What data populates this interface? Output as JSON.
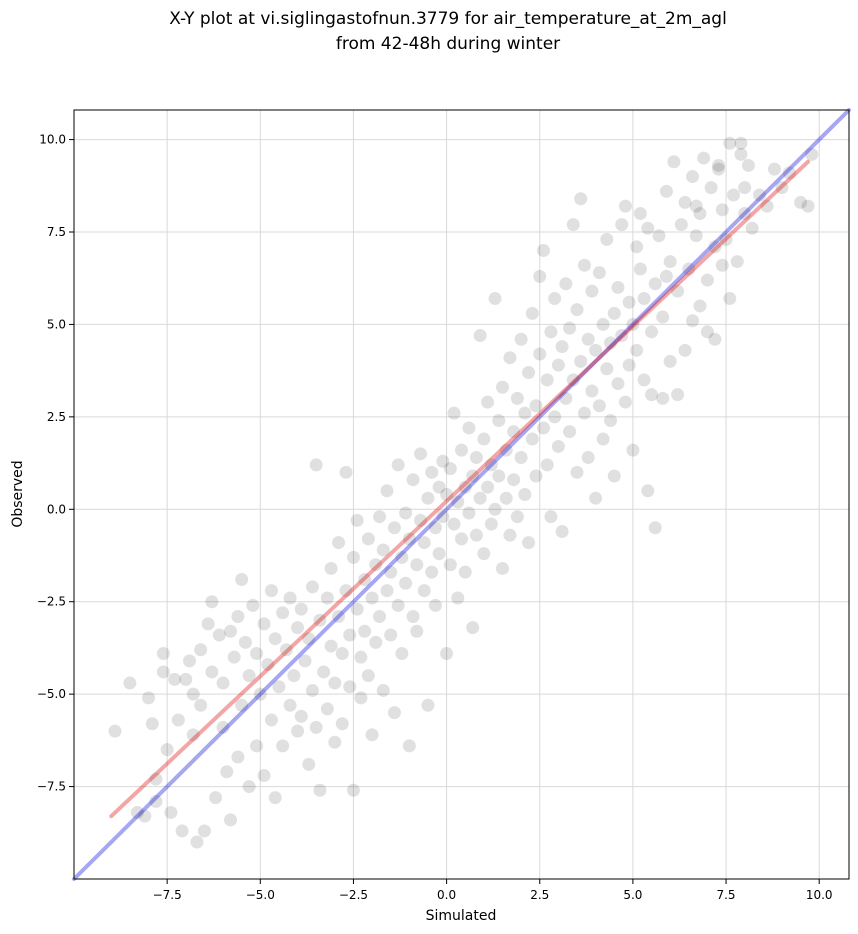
{
  "chart_data": {
    "type": "scatter",
    "title": "X-Y plot at vi.siglingastofnun.3779 for air_temperature_at_2m_agl",
    "subtitle": "from 42-48h during winter",
    "xlabel": "Simulated",
    "ylabel": "Observed",
    "xlim": [
      -10.0,
      10.8
    ],
    "ylim": [
      -10.0,
      10.8
    ],
    "x_ticks": [
      -7.5,
      -5.0,
      -2.5,
      0.0,
      2.5,
      5.0,
      7.5,
      10.0
    ],
    "y_ticks": [
      -7.5,
      -5.0,
      -2.5,
      0.0,
      2.5,
      5.0,
      7.5,
      10.0
    ],
    "x_tick_labels": [
      "−7.5",
      "−5.0",
      "−2.5",
      "0.0",
      "2.5",
      "5.0",
      "7.5",
      "10.0"
    ],
    "y_tick_labels": [
      "−7.5",
      "−5.0",
      "−2.5",
      "0.0",
      "2.5",
      "5.0",
      "7.5",
      "10.0"
    ],
    "grid": true,
    "colors": {
      "points": "#000000",
      "identity_line": "#0000dd",
      "regression_line": "#dd0000"
    },
    "points": [
      [
        -8.9,
        -6.0
      ],
      [
        -8.5,
        -4.7
      ],
      [
        -8.3,
        -8.2
      ],
      [
        -8.1,
        -8.3
      ],
      [
        -8.0,
        -5.1
      ],
      [
        -7.9,
        -5.8
      ],
      [
        -7.8,
        -7.3
      ],
      [
        -7.8,
        -7.9
      ],
      [
        -7.6,
        -3.9
      ],
      [
        -7.6,
        -4.4
      ],
      [
        -7.5,
        -6.5
      ],
      [
        -7.4,
        -8.2
      ],
      [
        -7.3,
        -4.6
      ],
      [
        -7.2,
        -5.7
      ],
      [
        -7.1,
        -8.7
      ],
      [
        -7.0,
        -4.6
      ],
      [
        -6.9,
        -4.1
      ],
      [
        -6.8,
        -5.0
      ],
      [
        -6.8,
        -6.1
      ],
      [
        -6.7,
        -9.0
      ],
      [
        -6.6,
        -3.8
      ],
      [
        -6.6,
        -5.3
      ],
      [
        -6.5,
        -8.7
      ],
      [
        -6.4,
        -3.1
      ],
      [
        -6.3,
        -2.5
      ],
      [
        -6.3,
        -4.4
      ],
      [
        -6.2,
        -7.8
      ],
      [
        -6.1,
        -3.4
      ],
      [
        -6.0,
        -4.7
      ],
      [
        -6.0,
        -5.9
      ],
      [
        -5.9,
        -7.1
      ],
      [
        -5.8,
        -3.3
      ],
      [
        -5.8,
        -8.4
      ],
      [
        -5.7,
        -4.0
      ],
      [
        -5.6,
        -2.9
      ],
      [
        -5.6,
        -6.7
      ],
      [
        -5.5,
        -1.9
      ],
      [
        -5.5,
        -5.3
      ],
      [
        -5.4,
        -3.6
      ],
      [
        -5.3,
        -4.5
      ],
      [
        -5.3,
        -7.5
      ],
      [
        -5.2,
        -2.6
      ],
      [
        -5.1,
        -3.9
      ],
      [
        -5.1,
        -6.4
      ],
      [
        -5.0,
        -5.0
      ],
      [
        -4.9,
        -3.1
      ],
      [
        -4.9,
        -7.2
      ],
      [
        -4.8,
        -4.2
      ],
      [
        -4.7,
        -2.2
      ],
      [
        -4.7,
        -5.7
      ],
      [
        -4.6,
        -3.5
      ],
      [
        -4.6,
        -7.8
      ],
      [
        -4.5,
        -4.8
      ],
      [
        -4.4,
        -2.8
      ],
      [
        -4.4,
        -6.4
      ],
      [
        -4.3,
        -3.8
      ],
      [
        -4.2,
        -5.3
      ],
      [
        -4.2,
        -2.4
      ],
      [
        -4.1,
        -4.5
      ],
      [
        -4.0,
        -6.0
      ],
      [
        -4.0,
        -3.2
      ],
      [
        -3.9,
        -5.6
      ],
      [
        -3.9,
        -2.7
      ],
      [
        -3.8,
        -4.1
      ],
      [
        -3.7,
        -6.9
      ],
      [
        -3.7,
        -3.5
      ],
      [
        -3.6,
        -2.1
      ],
      [
        -3.6,
        -4.9
      ],
      [
        -3.5,
        -5.9
      ],
      [
        -3.5,
        1.2
      ],
      [
        -3.4,
        -3.0
      ],
      [
        -3.4,
        -7.6
      ],
      [
        -3.3,
        -4.4
      ],
      [
        -3.2,
        -2.4
      ],
      [
        -3.2,
        -5.4
      ],
      [
        -3.1,
        -3.7
      ],
      [
        -3.1,
        -1.6
      ],
      [
        -3.0,
        -4.7
      ],
      [
        -3.0,
        -6.3
      ],
      [
        -2.9,
        -2.9
      ],
      [
        -2.9,
        -0.9
      ],
      [
        -2.8,
        -3.9
      ],
      [
        -2.8,
        -5.8
      ],
      [
        -2.7,
        -2.2
      ],
      [
        -2.7,
        1.0
      ],
      [
        -2.6,
        -3.4
      ],
      [
        -2.6,
        -4.8
      ],
      [
        -2.5,
        -1.3
      ],
      [
        -2.5,
        -7.6
      ],
      [
        -2.4,
        -2.7
      ],
      [
        -2.4,
        -0.3
      ],
      [
        -2.3,
        -4.0
      ],
      [
        -2.3,
        -5.1
      ],
      [
        -2.2,
        -1.9
      ],
      [
        -2.2,
        -3.3
      ],
      [
        -2.1,
        -0.8
      ],
      [
        -2.1,
        -4.5
      ],
      [
        -2.0,
        -2.4
      ],
      [
        -2.0,
        -6.1
      ],
      [
        -1.9,
        -1.5
      ],
      [
        -1.9,
        -3.6
      ],
      [
        -1.8,
        -0.2
      ],
      [
        -1.8,
        -2.9
      ],
      [
        -1.7,
        -4.9
      ],
      [
        -1.7,
        -1.1
      ],
      [
        -1.6,
        -2.2
      ],
      [
        -1.6,
        0.5
      ],
      [
        -1.5,
        -3.4
      ],
      [
        -1.5,
        -1.7
      ],
      [
        -1.4,
        -5.5
      ],
      [
        -1.4,
        -0.5
      ],
      [
        -1.3,
        -2.6
      ],
      [
        -1.3,
        1.2
      ],
      [
        -1.2,
        -1.3
      ],
      [
        -1.2,
        -3.9
      ],
      [
        -1.1,
        -0.1
      ],
      [
        -1.1,
        -2.0
      ],
      [
        -1.0,
        -6.4
      ],
      [
        -1.0,
        -0.8
      ],
      [
        -0.9,
        -2.9
      ],
      [
        -0.9,
        0.8
      ],
      [
        -0.8,
        -1.5
      ],
      [
        -0.8,
        -3.3
      ],
      [
        -0.7,
        -0.3
      ],
      [
        -0.7,
        1.5
      ],
      [
        -0.6,
        -2.2
      ],
      [
        -0.6,
        -0.9
      ],
      [
        -0.5,
        -5.3
      ],
      [
        -0.5,
        0.3
      ],
      [
        -0.4,
        -1.7
      ],
      [
        -0.4,
        1.0
      ],
      [
        -0.3,
        -0.5
      ],
      [
        -0.3,
        -2.6
      ],
      [
        -0.2,
        0.6
      ],
      [
        -0.2,
        -1.2
      ],
      [
        -0.1,
        1.3
      ],
      [
        -0.1,
        -0.2
      ],
      [
        0.0,
        -3.9
      ],
      [
        0.0,
        0.4
      ],
      [
        0.1,
        -1.5
      ],
      [
        0.1,
        1.1
      ],
      [
        0.2,
        -0.4
      ],
      [
        0.2,
        2.6
      ],
      [
        0.3,
        0.2
      ],
      [
        0.3,
        -2.4
      ],
      [
        0.4,
        -0.8
      ],
      [
        0.4,
        1.6
      ],
      [
        0.5,
        0.6
      ],
      [
        0.5,
        -1.7
      ],
      [
        0.6,
        -0.1
      ],
      [
        0.6,
        2.2
      ],
      [
        0.7,
        0.9
      ],
      [
        0.7,
        -3.2
      ],
      [
        0.8,
        -0.7
      ],
      [
        0.8,
        1.4
      ],
      [
        0.9,
        0.3
      ],
      [
        0.9,
        4.7
      ],
      [
        1.0,
        -1.2
      ],
      [
        1.0,
        1.9
      ],
      [
        1.1,
        0.6
      ],
      [
        1.1,
        2.9
      ],
      [
        1.2,
        -0.4
      ],
      [
        1.2,
        1.2
      ],
      [
        1.3,
        5.7
      ],
      [
        1.3,
        0.0
      ],
      [
        1.4,
        2.4
      ],
      [
        1.4,
        0.9
      ],
      [
        1.5,
        -1.6
      ],
      [
        1.5,
        3.3
      ],
      [
        1.6,
        0.3
      ],
      [
        1.6,
        1.6
      ],
      [
        1.7,
        4.1
      ],
      [
        1.7,
        -0.7
      ],
      [
        1.8,
        2.1
      ],
      [
        1.8,
        0.8
      ],
      [
        1.9,
        3.0
      ],
      [
        1.9,
        -0.2
      ],
      [
        2.0,
        1.4
      ],
      [
        2.0,
        4.6
      ],
      [
        2.1,
        2.6
      ],
      [
        2.1,
        0.4
      ],
      [
        2.2,
        3.7
      ],
      [
        2.2,
        -0.9
      ],
      [
        2.3,
        1.9
      ],
      [
        2.3,
        5.3
      ],
      [
        2.4,
        2.8
      ],
      [
        2.4,
        0.9
      ],
      [
        2.5,
        4.2
      ],
      [
        2.5,
        6.3
      ],
      [
        2.6,
        2.2
      ],
      [
        2.6,
        7.0
      ],
      [
        2.7,
        3.5
      ],
      [
        2.7,
        1.2
      ],
      [
        2.8,
        4.8
      ],
      [
        2.8,
        -0.2
      ],
      [
        2.9,
        2.5
      ],
      [
        2.9,
        5.7
      ],
      [
        3.0,
        3.9
      ],
      [
        3.0,
        1.7
      ],
      [
        3.1,
        4.4
      ],
      [
        3.1,
        -0.6
      ],
      [
        3.2,
        3.0
      ],
      [
        3.2,
        6.1
      ],
      [
        3.3,
        4.9
      ],
      [
        3.3,
        2.1
      ],
      [
        3.4,
        3.5
      ],
      [
        3.4,
        7.7
      ],
      [
        3.5,
        5.4
      ],
      [
        3.5,
        1.0
      ],
      [
        3.6,
        4.0
      ],
      [
        3.6,
        8.4
      ],
      [
        3.7,
        2.6
      ],
      [
        3.7,
        6.6
      ],
      [
        3.8,
        4.6
      ],
      [
        3.8,
        1.4
      ],
      [
        3.9,
        3.2
      ],
      [
        3.9,
        5.9
      ],
      [
        4.0,
        4.3
      ],
      [
        4.0,
        0.3
      ],
      [
        4.1,
        2.8
      ],
      [
        4.1,
        6.4
      ],
      [
        4.2,
        5.0
      ],
      [
        4.2,
        1.9
      ],
      [
        4.3,
        3.8
      ],
      [
        4.3,
        7.3
      ],
      [
        4.4,
        4.5
      ],
      [
        4.4,
        2.4
      ],
      [
        4.5,
        5.3
      ],
      [
        4.5,
        0.9
      ],
      [
        4.6,
        3.4
      ],
      [
        4.6,
        6.0
      ],
      [
        4.7,
        7.7
      ],
      [
        4.7,
        4.7
      ],
      [
        4.8,
        8.2
      ],
      [
        4.8,
        2.9
      ],
      [
        4.9,
        5.6
      ],
      [
        4.9,
        3.9
      ],
      [
        5.0,
        5.0
      ],
      [
        5.0,
        1.6
      ],
      [
        5.1,
        7.1
      ],
      [
        5.1,
        4.3
      ],
      [
        5.2,
        8.0
      ],
      [
        5.2,
        6.5
      ],
      [
        5.3,
        3.5
      ],
      [
        5.3,
        5.7
      ],
      [
        5.4,
        0.5
      ],
      [
        5.4,
        7.6
      ],
      [
        5.5,
        4.8
      ],
      [
        5.5,
        3.1
      ],
      [
        5.6,
        -0.5
      ],
      [
        5.6,
        6.1
      ],
      [
        5.7,
        7.4
      ],
      [
        5.8,
        5.2
      ],
      [
        5.8,
        3.0
      ],
      [
        5.9,
        8.6
      ],
      [
        6.0,
        6.7
      ],
      [
        6.0,
        4.0
      ],
      [
        6.1,
        9.4
      ],
      [
        6.2,
        5.9
      ],
      [
        6.2,
        3.1
      ],
      [
        6.3,
        7.7
      ],
      [
        6.4,
        8.3
      ],
      [
        6.4,
        4.3
      ],
      [
        6.5,
        6.5
      ],
      [
        6.6,
        9.0
      ],
      [
        6.6,
        5.1
      ],
      [
        6.7,
        7.4
      ],
      [
        6.8,
        8.0
      ],
      [
        6.8,
        5.5
      ],
      [
        6.9,
        9.5
      ],
      [
        7.0,
        6.2
      ],
      [
        7.0,
        4.8
      ],
      [
        7.1,
        8.7
      ],
      [
        7.2,
        7.1
      ],
      [
        7.2,
        4.6
      ],
      [
        7.3,
        9.2
      ],
      [
        7.4,
        6.6
      ],
      [
        7.4,
        8.1
      ],
      [
        7.5,
        7.3
      ],
      [
        7.6,
        5.7
      ],
      [
        7.6,
        9.9
      ],
      [
        7.7,
        8.5
      ],
      [
        7.8,
        6.7
      ],
      [
        7.9,
        9.6
      ],
      [
        8.0,
        8.7
      ],
      [
        8.0,
        8.0
      ],
      [
        8.1,
        9.3
      ],
      [
        8.2,
        7.6
      ],
      [
        8.4,
        8.5
      ],
      [
        8.6,
        8.2
      ],
      [
        8.8,
        9.2
      ],
      [
        9.0,
        8.7
      ],
      [
        9.2,
        9.1
      ],
      [
        9.5,
        8.3
      ],
      [
        9.7,
        8.2
      ],
      [
        9.8,
        9.6
      ],
      [
        7.3,
        9.3
      ],
      [
        7.9,
        9.9
      ],
      [
        6.7,
        8.2
      ],
      [
        5.9,
        6.3
      ]
    ],
    "identity_line": {
      "from": [
        -10.0,
        -10.0
      ],
      "to": [
        10.8,
        10.8
      ]
    },
    "regression_line": {
      "from": [
        -9.0,
        -8.3
      ],
      "to": [
        9.7,
        9.4
      ]
    }
  }
}
